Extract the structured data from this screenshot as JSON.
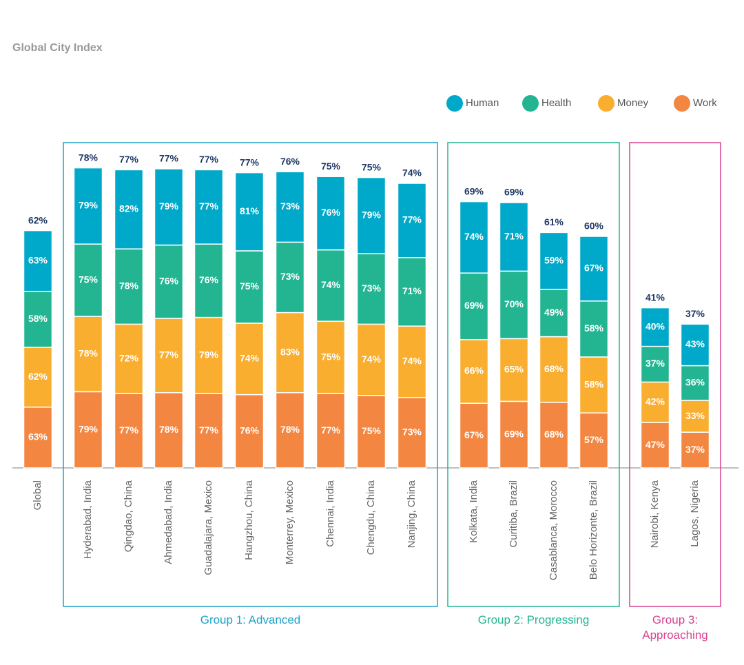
{
  "chart_data": {
    "type": "stacked-bar",
    "title": "Global City Index",
    "categories": [
      "Global",
      "Hyderabad, India",
      "Qingdao, China",
      "Ahmedabad, India",
      "Guadalajara, Mexico",
      "Hangzhou, China",
      "Monterrey, Mexico",
      "Chennai, India",
      "Chengdu, China",
      "Nanjing, China",
      "Kolkata, India",
      "Curitiba, Brazil",
      "Casablanca, Morocco",
      "Belo Horizonte, Brazil",
      "Nairobi, Kenya",
      "Lagos, Nigeria"
    ],
    "series": [
      {
        "name": "Human",
        "color": "#00a9c9",
        "values": [
          63,
          79,
          82,
          79,
          77,
          81,
          73,
          76,
          79,
          77,
          74,
          71,
          59,
          67,
          40,
          43
        ],
        "value_labels": [
          "63%",
          "79%",
          "82%",
          "79%",
          "77%",
          "81%",
          "73%",
          "76%",
          "79%",
          "77%",
          "74%",
          "71%",
          "59%",
          "67%",
          "40%",
          "43%"
        ]
      },
      {
        "name": "Health",
        "color": "#23b592",
        "values": [
          58,
          75,
          78,
          76,
          76,
          75,
          73,
          74,
          73,
          71,
          69,
          70,
          49,
          58,
          37,
          36
        ],
        "value_labels": [
          "58%",
          "75%",
          "78%",
          "76%",
          "76%",
          "75%",
          "73%",
          "74%",
          "73%",
          "71%",
          "69%",
          "70%",
          "49%",
          "58%",
          "37%",
          "36%"
        ]
      },
      {
        "name": "Money",
        "color": "#f9ae30",
        "values": [
          62,
          78,
          72,
          77,
          79,
          74,
          83,
          75,
          74,
          74,
          66,
          65,
          68,
          58,
          42,
          33
        ],
        "value_labels": [
          "62%",
          "78%",
          "72%",
          "77%",
          "79%",
          "74%",
          "83%",
          "75%",
          "74%",
          "74%",
          "66%",
          "65%",
          "68%",
          "58%",
          "42%",
          "33%"
        ]
      },
      {
        "name": "Work",
        "color": "#f38742",
        "values": [
          63,
          79,
          77,
          78,
          77,
          76,
          78,
          77,
          75,
          73,
          67,
          69,
          68,
          57,
          47,
          37
        ],
        "value_labels": [
          "63%",
          "79%",
          "77%",
          "78%",
          "77%",
          "76%",
          "78%",
          "77%",
          "75%",
          "73%",
          "67%",
          "69%",
          "68%",
          "57%",
          "47%",
          "37%"
        ]
      }
    ],
    "totals": {
      "values": [
        62,
        78,
        77,
        77,
        77,
        77,
        76,
        75,
        75,
        74,
        69,
        69,
        61,
        60,
        41,
        37
      ],
      "value_labels": [
        "62%",
        "78%",
        "77%",
        "77%",
        "77%",
        "77%",
        "76%",
        "75%",
        "75%",
        "74%",
        "69%",
        "69%",
        "61%",
        "60%",
        "41%",
        "37%"
      ]
    },
    "ylim": [
      0,
      320
    ],
    "groups": [
      {
        "name": "Group 1: Advanced",
        "color": "#1aa3c8"
      },
      {
        "name": "Group 2: Progressing",
        "color": "#23b592"
      },
      {
        "name": "Group 3: Approaching",
        "color": "#d6428f"
      }
    ]
  }
}
